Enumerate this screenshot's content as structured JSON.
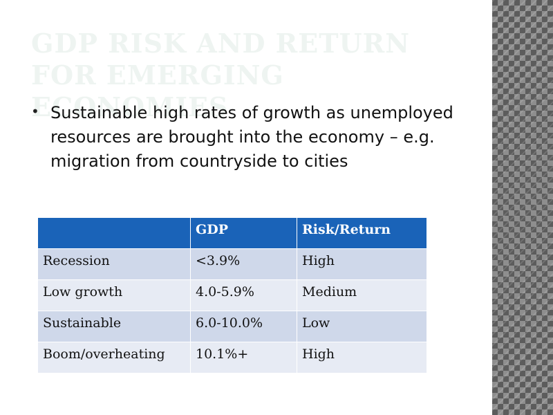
{
  "slide": {
    "title": "GDP Risk and Return for Emerging Economies",
    "bullets": [
      "Sustainable high rates of growth as unemployed resources are brought into the economy – e.g. migration from countryside to cities"
    ],
    "table": {
      "headers": [
        "",
        "GDP",
        "Risk/Return"
      ],
      "rows": [
        [
          "Recession",
          "<3.9%",
          "High"
        ],
        [
          "Low growth",
          "4.0-5.9%",
          "Medium"
        ],
        [
          "Sustainable",
          "6.0-10.0%",
          "Low"
        ],
        [
          "Boom/overheating",
          "10.1%+",
          "High"
        ]
      ]
    },
    "colors": {
      "header_bg": "#1a63b8",
      "row_dark": "#cfd8ea",
      "row_light": "#e7ebf4",
      "title": "#eef4f1"
    }
  }
}
